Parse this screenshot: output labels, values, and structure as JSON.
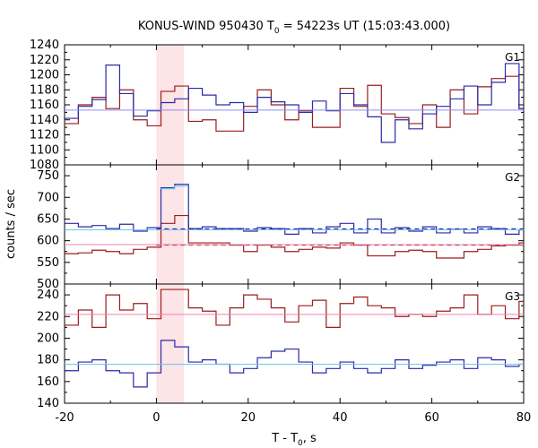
{
  "chart_data": {
    "type": "line",
    "title_main": "KONUS-WIND 950430 T",
    "title_sub": "0",
    "title_tail": " = 54223s UT (15:03:43.000)",
    "xlabel_main": "T - T",
    "xlabel_sub": "0",
    "xlabel_tail": ", s",
    "ylabel": "counts / sec",
    "xlim": [
      -20,
      80
    ],
    "x_ticks": [
      -20,
      0,
      20,
      40,
      60,
      80
    ],
    "highlight": {
      "x_from": 0,
      "x_to": 6,
      "color": "#fde4e6"
    },
    "colors": {
      "red": "#9b1c1c",
      "blue": "#2a2aa8",
      "pink": "#ee82b4",
      "cyan": "#6ec8ef",
      "light_blue": "#8c8cf0"
    },
    "panels": [
      {
        "name": "G1",
        "ylim": [
          1080,
          1240
        ],
        "y_ticks": [
          1080,
          1100,
          1120,
          1140,
          1160,
          1180,
          1200,
          1220,
          1240
        ],
        "series": [
          {
            "color": "red",
            "kind": "step",
            "x": [
              -20,
              -17,
              -14,
              -11,
              -8,
              -5,
              -2,
              1,
              4,
              7,
              10,
              13,
              16,
              19,
              22,
              25,
              28,
              31,
              34,
              37,
              40,
              43,
              46,
              49,
              52,
              55,
              58,
              61,
              64,
              67,
              70,
              73,
              76,
              79,
              80
            ],
            "values": [
              1135,
              1160,
              1170,
              1155,
              1180,
              1140,
              1132,
              1178,
              1185,
              1138,
              1140,
              1125,
              1125,
              1158,
              1180,
              1160,
              1140,
              1152,
              1130,
              1130,
              1182,
              1158,
              1186,
              1148,
              1143,
              1135,
              1160,
              1130,
              1180,
              1148,
              1184,
              1195,
              1198,
              1155,
              1155
            ]
          },
          {
            "color": "blue",
            "kind": "step",
            "x": [
              -20,
              -17,
              -14,
              -11,
              -8,
              -5,
              -2,
              1,
              4,
              7,
              10,
              13,
              16,
              19,
              22,
              25,
              28,
              31,
              34,
              37,
              40,
              43,
              46,
              49,
              52,
              55,
              58,
              61,
              64,
              67,
              70,
              73,
              76,
              79,
              80
            ],
            "values": [
              1142,
              1158,
              1167,
              1213,
              1175,
              1145,
              1152,
              1163,
              1168,
              1182,
              1173,
              1160,
              1163,
              1150,
              1170,
              1164,
              1160,
              1150,
              1165,
              1152,
              1175,
              1160,
              1144,
              1110,
              1140,
              1128,
              1148,
              1158,
              1168,
              1185,
              1160,
              1190,
              1215,
              1155,
              1155
            ]
          },
          {
            "color": "light_blue",
            "kind": "level",
            "y": 1153
          }
        ]
      },
      {
        "name": "G2",
        "ylim": [
          500,
          775
        ],
        "y_ticks": [
          500,
          550,
          600,
          650,
          700,
          750
        ],
        "series": [
          {
            "color": "red",
            "kind": "step",
            "x": [
              -20,
              -17,
              -14,
              -11,
              -8,
              -5,
              -2,
              1,
              4,
              7,
              10,
              13,
              16,
              19,
              22,
              25,
              28,
              31,
              34,
              37,
              40,
              43,
              46,
              49,
              52,
              55,
              58,
              61,
              64,
              67,
              70,
              73,
              76,
              79,
              80
            ],
            "values": [
              570,
              572,
              578,
              575,
              570,
              580,
              585,
              640,
              658,
              595,
              595,
              595,
              590,
              575,
              590,
              585,
              575,
              580,
              585,
              583,
              595,
              590,
              565,
              565,
              575,
              578,
              575,
              560,
              560,
              575,
              580,
              588,
              590,
              595,
              595
            ]
          },
          {
            "color": "blue",
            "kind": "step",
            "x": [
              -20,
              -17,
              -14,
              -11,
              -8,
              -5,
              -2,
              1,
              4,
              7,
              10,
              13,
              16,
              19,
              22,
              25,
              28,
              31,
              34,
              37,
              40,
              43,
              46,
              49,
              52,
              55,
              58,
              61,
              64,
              67,
              70,
              73,
              76,
              79,
              80
            ],
            "values": [
              640,
              632,
              635,
              628,
              638,
              622,
              630,
              722,
              730,
              628,
              632,
              628,
              628,
              622,
              630,
              628,
              615,
              628,
              618,
              632,
              640,
              618,
              650,
              618,
              630,
              622,
              632,
              618,
              626,
              618,
              632,
              628,
              615,
              625,
              625
            ]
          },
          {
            "color": "cyan",
            "kind": "step",
            "x": [
              1,
              4,
              7
            ],
            "values": [
              720,
              726,
              726
            ]
          },
          {
            "color": "blue",
            "kind": "dashed",
            "y": 627
          },
          {
            "color": "red",
            "kind": "dashed",
            "y": 590
          },
          {
            "color": "pink",
            "kind": "level",
            "y": 591
          },
          {
            "color": "cyan",
            "kind": "level",
            "y": 625
          }
        ]
      },
      {
        "name": "G3",
        "ylim": [
          140,
          250
        ],
        "y_ticks": [
          140,
          160,
          180,
          200,
          220,
          240
        ],
        "series": [
          {
            "color": "red",
            "kind": "step",
            "x": [
              -20,
              -17,
              -14,
              -11,
              -8,
              -5,
              -2,
              1,
              4,
              7,
              10,
              13,
              16,
              19,
              22,
              25,
              28,
              31,
              34,
              37,
              40,
              43,
              46,
              49,
              52,
              55,
              58,
              61,
              64,
              67,
              70,
              73,
              76,
              79,
              80
            ],
            "values": [
              212,
              226,
              210,
              240,
              226,
              232,
              218,
              245,
              245,
              228,
              225,
              212,
              228,
              240,
              236,
              228,
              215,
              230,
              235,
              210,
              232,
              238,
              230,
              228,
              220,
              222,
              220,
              225,
              228,
              240,
              222,
              230,
              218,
              234,
              234
            ]
          },
          {
            "color": "blue",
            "kind": "step",
            "x": [
              -20,
              -17,
              -14,
              -11,
              -8,
              -5,
              -2,
              1,
              4,
              7,
              10,
              13,
              16,
              19,
              22,
              25,
              28,
              31,
              34,
              37,
              40,
              43,
              46,
              49,
              52,
              55,
              58,
              61,
              64,
              67,
              70,
              73,
              76,
              79,
              80
            ],
            "values": [
              170,
              178,
              180,
              170,
              168,
              155,
              168,
              198,
              192,
              178,
              180,
              176,
              168,
              172,
              182,
              188,
              190,
              178,
              168,
              172,
              178,
              172,
              168,
              172,
              180,
              172,
              175,
              178,
              180,
              172,
              182,
              180,
              174,
              176,
              176
            ]
          },
          {
            "color": "pink",
            "kind": "level",
            "y": 222
          },
          {
            "color": "cyan",
            "kind": "level",
            "y": 176
          }
        ]
      }
    ]
  }
}
